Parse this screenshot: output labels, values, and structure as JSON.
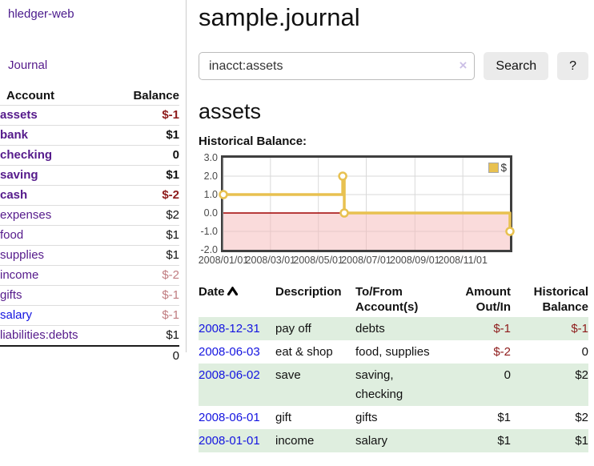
{
  "sidebar": {
    "brand": "hledger-web",
    "journal_label": "Journal",
    "accounts_table": {
      "headers": [
        "Account",
        "Balance"
      ],
      "rows": [
        {
          "account": "assets",
          "balance": "$-1"
        },
        {
          "account": "bank",
          "balance": "$1"
        },
        {
          "account": "checking",
          "balance": "0"
        },
        {
          "account": "saving",
          "balance": "$1"
        },
        {
          "account": "cash",
          "balance": "$-2"
        },
        {
          "account": "expenses",
          "balance": "$2"
        },
        {
          "account": "food",
          "balance": "$1"
        },
        {
          "account": "supplies",
          "balance": "$1"
        },
        {
          "account": "income",
          "balance": "$-2"
        },
        {
          "account": "gifts",
          "balance": "$-1"
        },
        {
          "account": "salary",
          "balance": "$-1"
        },
        {
          "account": "liabilities:debts",
          "balance": "$1"
        }
      ],
      "total": "0"
    }
  },
  "main": {
    "title": "sample.journal",
    "search": {
      "value": "inacct:assets",
      "clear_icon": "×",
      "button_label": "Search",
      "help_label": "?"
    },
    "account_heading": "assets",
    "section_label": "Historical Balance:",
    "register_table": {
      "headers": {
        "date": "Date",
        "description": "Description",
        "accounts": "To/From Account(s)",
        "amount": "Amount Out/In",
        "balance": "Historical Balance"
      },
      "rows": [
        {
          "date": "2008-12-31",
          "description": "pay off",
          "accounts": "debts",
          "amount": "$-1",
          "balance": "$-1"
        },
        {
          "date": "2008-06-03",
          "description": "eat & shop",
          "accounts": "food, supplies",
          "amount": "$-2",
          "balance": "0"
        },
        {
          "date": "2008-06-02",
          "description": "save",
          "accounts": "saving, checking",
          "amount": "0",
          "balance": "$2"
        },
        {
          "date": "2008-06-01",
          "description": "gift",
          "accounts": "gifts",
          "amount": "$1",
          "balance": "$2"
        },
        {
          "date": "2008-01-01",
          "description": "income",
          "accounts": "salary",
          "amount": "$1",
          "balance": "$1"
        }
      ]
    }
  },
  "chart_data": {
    "type": "line",
    "title": "Historical Balance:",
    "interpolation": "step-after",
    "series": [
      {
        "name": "$",
        "color": "#e8c150",
        "points": [
          {
            "date": "2008-01-01",
            "value": 1
          },
          {
            "date": "2008-06-01",
            "value": 2
          },
          {
            "date": "2008-06-03",
            "value": 0
          },
          {
            "date": "2008-12-31",
            "value": -1
          }
        ]
      }
    ],
    "x_range": [
      "2008-01-01",
      "2008-12-31"
    ],
    "ylim": [
      -2,
      3
    ],
    "y_ticks": [
      {
        "value": 3,
        "label": "3.0"
      },
      {
        "value": 2,
        "label": "2.0"
      },
      {
        "value": 1,
        "label": "1.0"
      },
      {
        "value": 0,
        "label": "0.0"
      },
      {
        "value": -1,
        "label": "-1.0"
      },
      {
        "value": -2,
        "label": "-2.0"
      }
    ],
    "x_ticks": [
      {
        "date": "2008-01-01",
        "label": "2008/01/01"
      },
      {
        "date": "2008-03-01",
        "label": "2008/03/01"
      },
      {
        "date": "2008-05-01",
        "label": "2008/05/01"
      },
      {
        "date": "2008-07-01",
        "label": "2008/07/01"
      },
      {
        "date": "2008-09-01",
        "label": "2008/09/01"
      },
      {
        "date": "2008-11-01",
        "label": "2008/11/01"
      }
    ],
    "negative_region_color": "#f6b8b8",
    "zero_line_color": "#a00000",
    "gridline_color": "#d9d9d9",
    "legend_position": "top-right",
    "grid": true
  }
}
